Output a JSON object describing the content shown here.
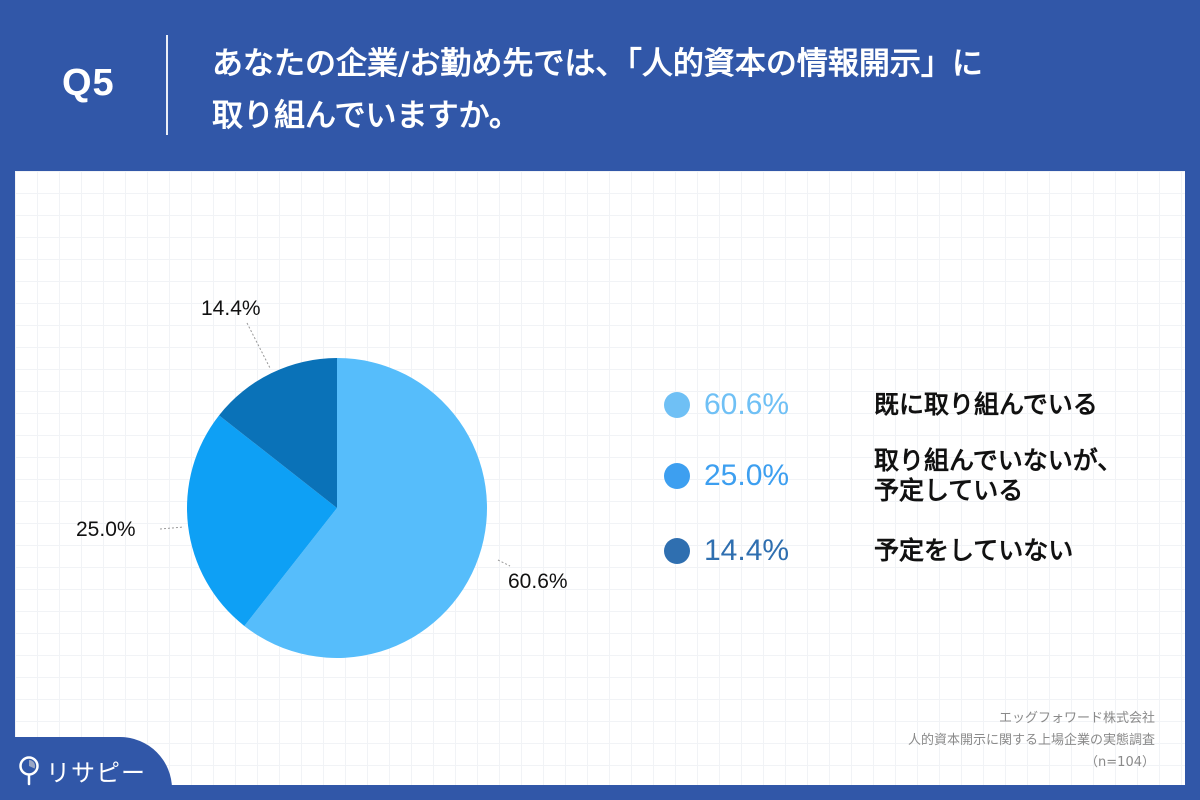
{
  "header": {
    "question_number": "Q5",
    "title_line1": "あなたの企業/お勤め先では、「人的資本の情報開示」に",
    "title_line2": "取り組んでいますか。"
  },
  "colors": {
    "background": "#3157a8",
    "slice_done": "#56bdfb",
    "slice_planned": "#0ea0f5",
    "slice_none": "#0a72b8",
    "legend_done": "#6fc0f5",
    "legend_planned": "#3d9ff0",
    "legend_none": "#2f6fb0"
  },
  "chart_data": {
    "type": "pie",
    "title": "あなたの企業/お勤め先では、「人的資本の情報開示」に取り組んでいますか。",
    "categories": [
      "既に取り組んでいる",
      "取り組んでいないが、予定している",
      "予定をしていない"
    ],
    "values": [
      60.6,
      25.0,
      14.4
    ],
    "labels": [
      "60.6%",
      "25.0%",
      "14.4%"
    ],
    "start_angle": "12 o'clock, clockwise",
    "legend_position": "right",
    "n": 104
  },
  "slice_labels": {
    "done": "60.6%",
    "planned": "25.0%",
    "none": "14.4%"
  },
  "legend": [
    {
      "pct": "60.6%",
      "text_line1": "既に取り組んでいる",
      "text_line2": ""
    },
    {
      "pct": "25.0%",
      "text_line1": "取り組んでいないが、",
      "text_line2": "予定している"
    },
    {
      "pct": "14.4%",
      "text_line1": "予定をしていない",
      "text_line2": ""
    }
  ],
  "source": {
    "company": "エッグフォワード株式会社",
    "survey": "人的資本開示に関する上場企業の実態調査",
    "sample": "（n=104）"
  },
  "logo": {
    "text": "リサピー",
    "icon": "map-pin-pie-icon"
  }
}
